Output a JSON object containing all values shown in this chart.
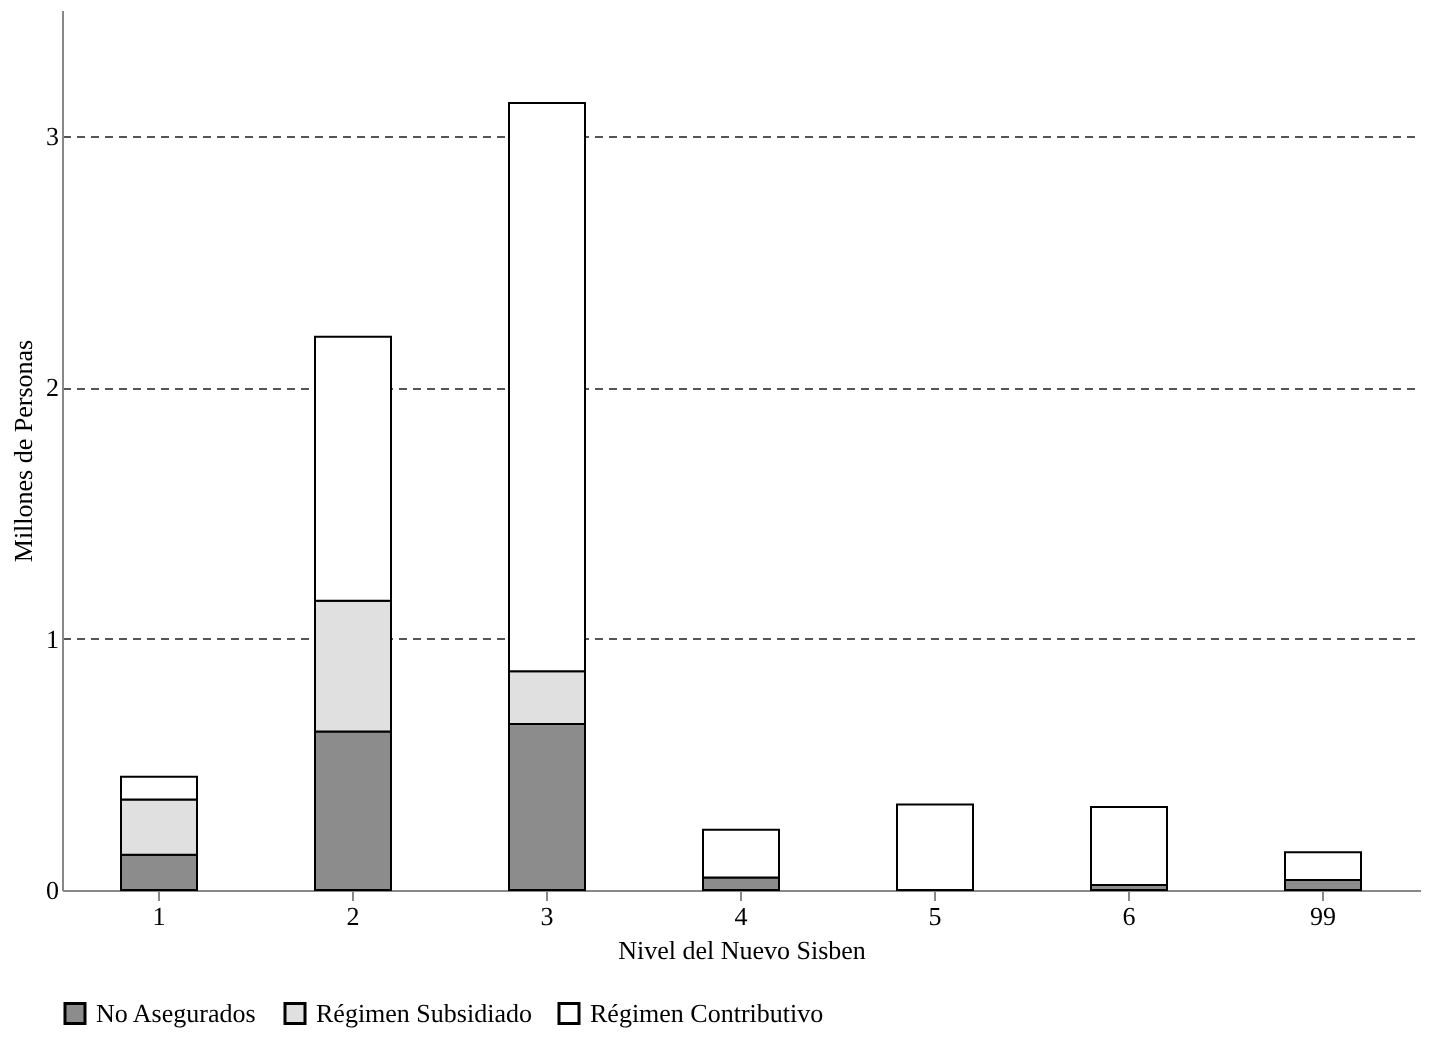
{
  "chart_data": {
    "type": "bar",
    "stacked": true,
    "xlabel": "Nivel del Nuevo Sisben",
    "ylabel": "Millones de Personas",
    "categories": [
      "1",
      "2",
      "3",
      "4",
      "5",
      "6",
      "99"
    ],
    "series": [
      {
        "name": "No Asegurados",
        "color": "#8c8c8c",
        "values": [
          0.14,
          0.63,
          0.66,
          0.05,
          null,
          0.02,
          0.04
        ]
      },
      {
        "name": "Régimen Subsidiado",
        "color": "#e0e0e0",
        "values": [
          0.22,
          0.52,
          0.21,
          null,
          0.0,
          0.0,
          null
        ]
      },
      {
        "name": "Régimen Contributivo",
        "color": "#ffffff",
        "values": [
          0.09,
          1.05,
          2.26,
          0.19,
          0.34,
          0.31,
          0.11
        ]
      }
    ],
    "ylim": [
      0,
      3.5
    ],
    "yticks": [
      0,
      1,
      2,
      3
    ],
    "grid": "y",
    "legend": "bottom"
  }
}
